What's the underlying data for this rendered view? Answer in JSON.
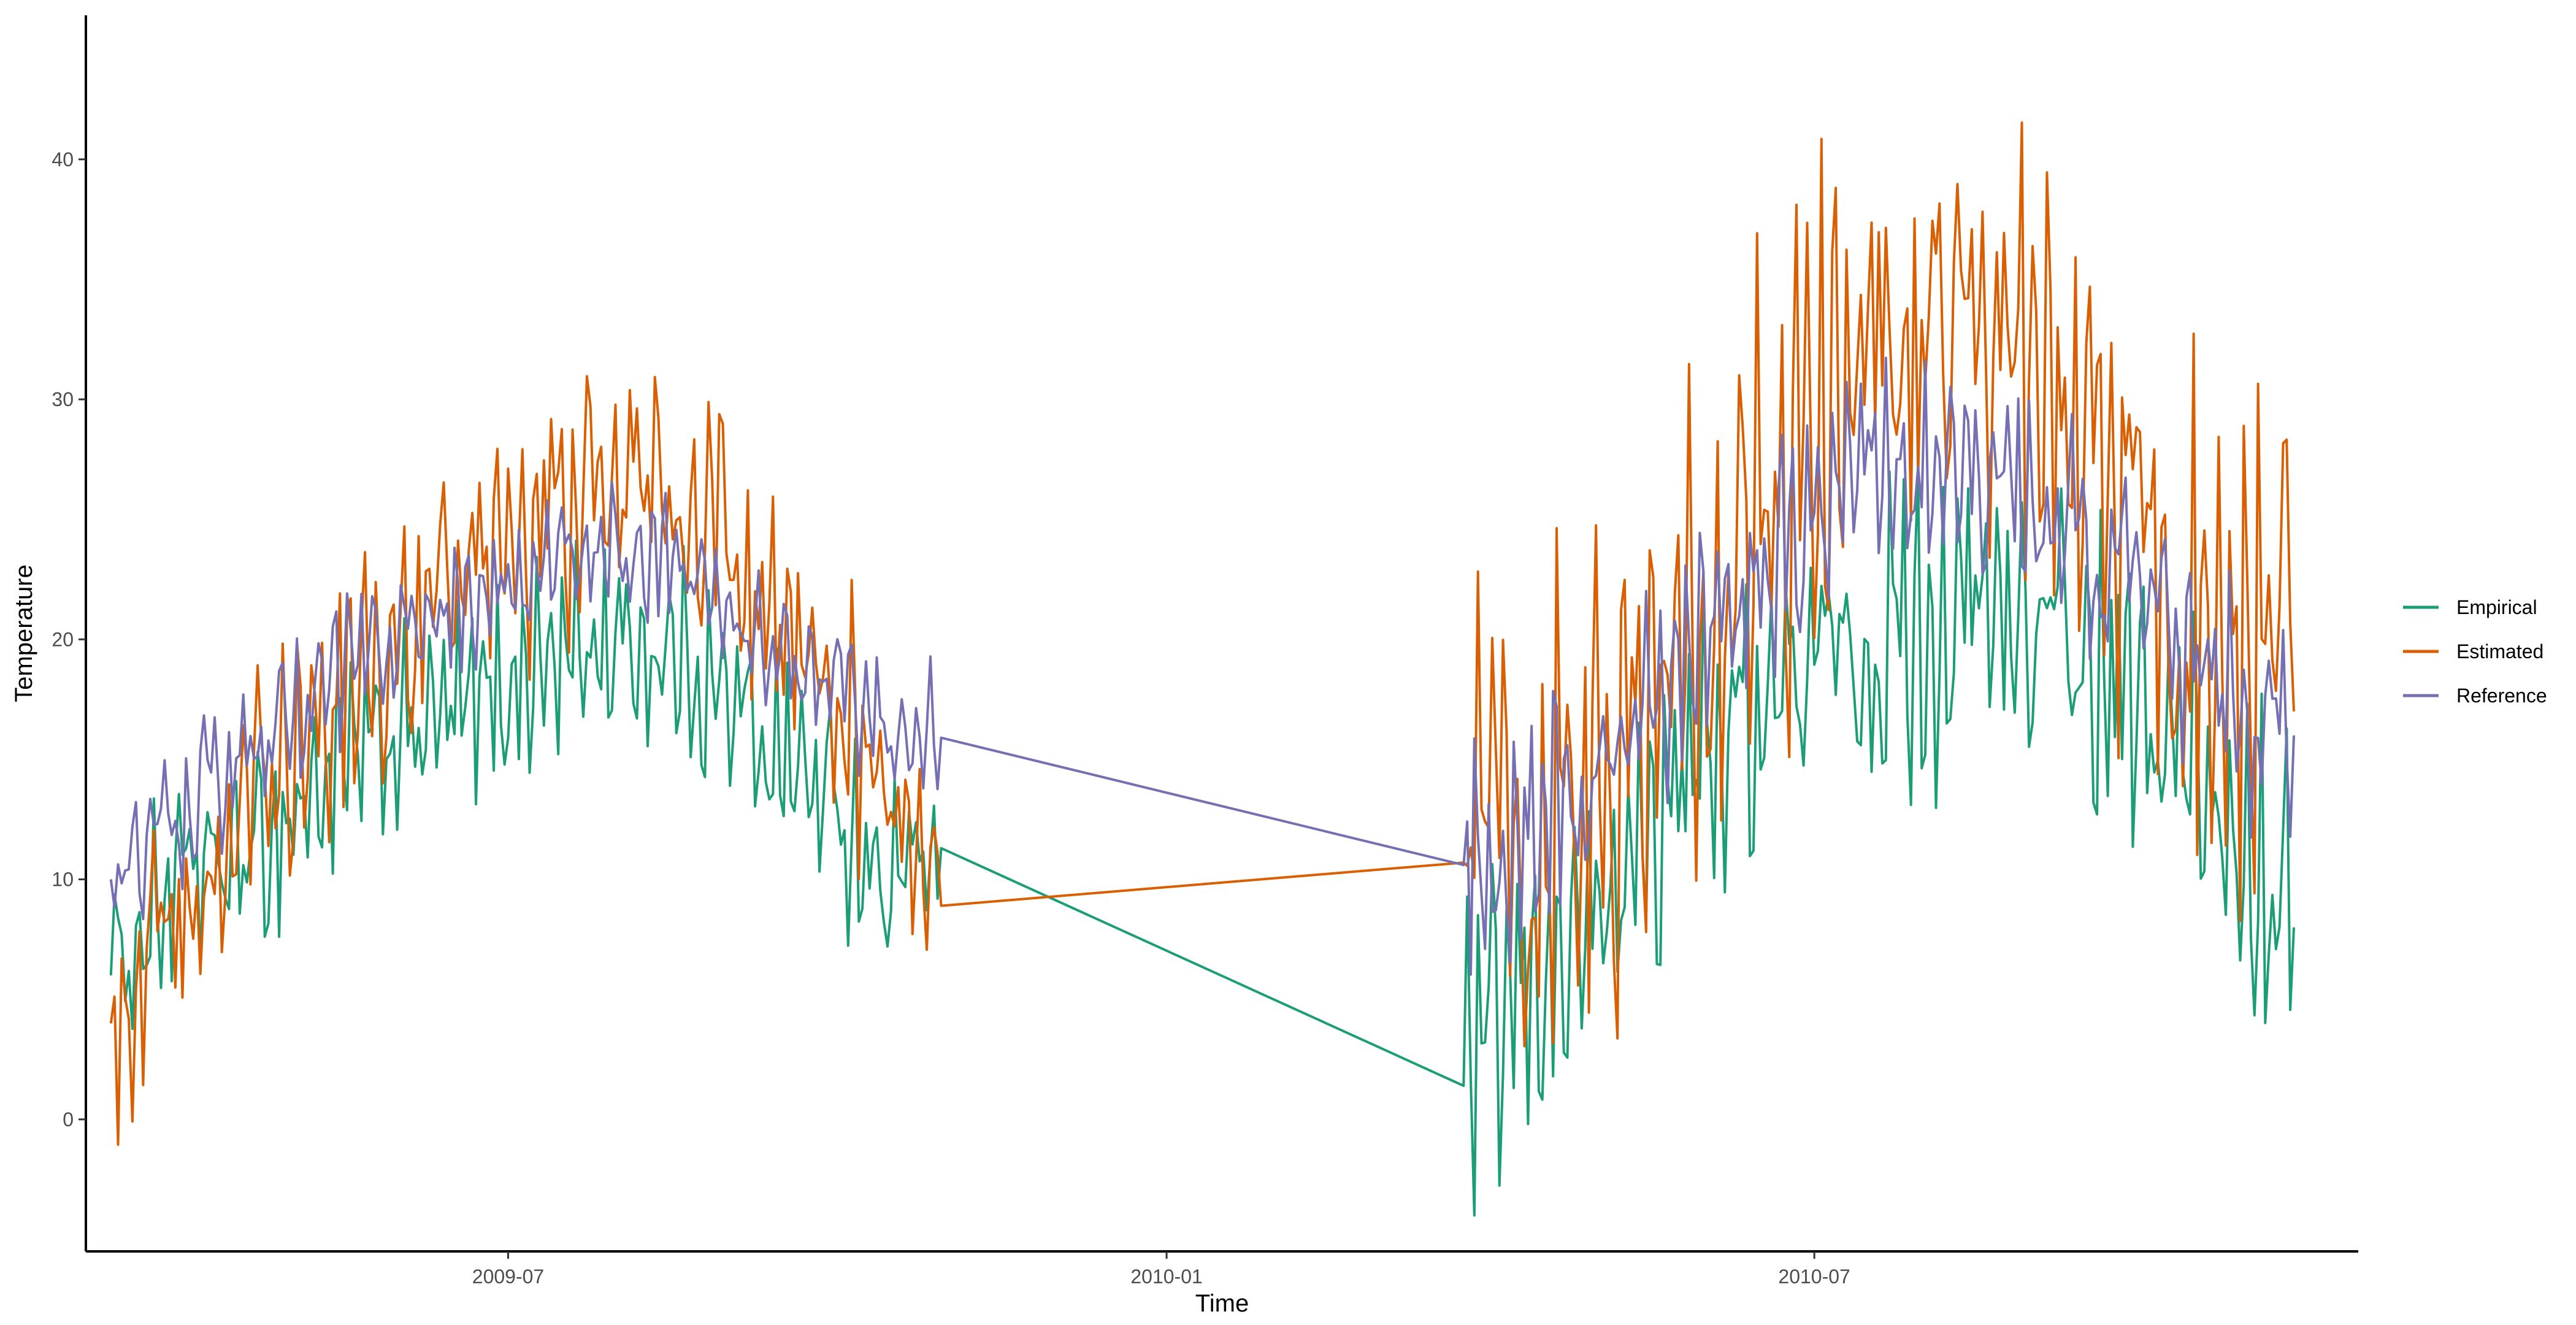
{
  "chart_data": {
    "type": "line",
    "title": "",
    "xlabel": "Time",
    "ylabel": "Temperature",
    "xlim": [
      "2009-03-05",
      "2010-11-30"
    ],
    "ylim": [
      -5.5,
      46
    ],
    "x_ticks": [
      {
        "date": "2009-07-01",
        "label": "2009-07"
      },
      {
        "date": "2010-01-01",
        "label": "2010-01"
      },
      {
        "date": "2010-07-01",
        "label": "2010-07"
      }
    ],
    "y_ticks": [
      0,
      10,
      20,
      30,
      40
    ],
    "grid": false,
    "legend": {
      "position": "right"
    },
    "segments": [
      {
        "start": "2009-03-12",
        "end": "2009-10-30"
      },
      {
        "start": "2010-03-25",
        "end": "2010-11-12"
      }
    ],
    "series": [
      {
        "name": "Empirical",
        "color": "#1B9E77",
        "points": [
          {
            "x": "2009-03-12",
            "y": 6
          },
          {
            "x": "2009-04-01",
            "y": 10
          },
          {
            "x": "2009-04-20",
            "y": 11
          },
          {
            "x": "2009-05-10",
            "y": 14
          },
          {
            "x": "2009-06-01",
            "y": 16
          },
          {
            "x": "2009-06-20",
            "y": 17
          },
          {
            "x": "2009-07-10",
            "y": 19
          },
          {
            "x": "2009-08-01",
            "y": 20
          },
          {
            "x": "2009-08-20",
            "y": 19
          },
          {
            "x": "2009-09-10",
            "y": 16
          },
          {
            "x": "2009-09-30",
            "y": 13
          },
          {
            "x": "2009-10-15",
            "y": 10
          },
          {
            "x": "2009-10-30",
            "y": 11.3
          },
          {
            "x": "2010-03-25",
            "y": 1.4
          },
          {
            "x": "2010-04-10",
            "y": 5
          },
          {
            "x": "2010-05-01",
            "y": 8
          },
          {
            "x": "2010-05-20",
            "y": 13
          },
          {
            "x": "2010-06-10",
            "y": 17
          },
          {
            "x": "2010-07-01",
            "y": 19
          },
          {
            "x": "2010-07-20",
            "y": 20
          },
          {
            "x": "2010-08-10",
            "y": 21
          },
          {
            "x": "2010-08-30",
            "y": 21
          },
          {
            "x": "2010-09-20",
            "y": 18
          },
          {
            "x": "2010-10-10",
            "y": 15
          },
          {
            "x": "2010-10-30",
            "y": 12
          },
          {
            "x": "2010-11-12",
            "y": 8
          }
        ]
      },
      {
        "name": "Estimated",
        "color": "#D95F02",
        "points": [
          {
            "x": "2009-03-12",
            "y": 4
          },
          {
            "x": "2009-04-01",
            "y": 9
          },
          {
            "x": "2009-04-20",
            "y": 12
          },
          {
            "x": "2009-05-10",
            "y": 17
          },
          {
            "x": "2009-06-01",
            "y": 20
          },
          {
            "x": "2009-06-20",
            "y": 22
          },
          {
            "x": "2009-07-10",
            "y": 25
          },
          {
            "x": "2009-08-01",
            "y": 27
          },
          {
            "x": "2009-08-20",
            "y": 26
          },
          {
            "x": "2009-09-10",
            "y": 22
          },
          {
            "x": "2009-09-30",
            "y": 18
          },
          {
            "x": "2009-10-15",
            "y": 14
          },
          {
            "x": "2009-10-30",
            "y": 8.9
          },
          {
            "x": "2010-03-25",
            "y": 10.7
          },
          {
            "x": "2010-04-10",
            "y": 11
          },
          {
            "x": "2010-05-01",
            "y": 14
          },
          {
            "x": "2010-05-20",
            "y": 18
          },
          {
            "x": "2010-06-10",
            "y": 24
          },
          {
            "x": "2010-07-01",
            "y": 29
          },
          {
            "x": "2010-07-20",
            "y": 32
          },
          {
            "x": "2010-08-10",
            "y": 33
          },
          {
            "x": "2010-08-30",
            "y": 32
          },
          {
            "x": "2010-09-20",
            "y": 26
          },
          {
            "x": "2010-10-10",
            "y": 22
          },
          {
            "x": "2010-10-30",
            "y": 19
          },
          {
            "x": "2010-11-12",
            "y": 17
          }
        ]
      },
      {
        "name": "Reference",
        "color": "#7570B3",
        "points": [
          {
            "x": "2009-03-12",
            "y": 10
          },
          {
            "x": "2009-04-01",
            "y": 13
          },
          {
            "x": "2009-04-20",
            "y": 15
          },
          {
            "x": "2009-05-10",
            "y": 18
          },
          {
            "x": "2009-06-01",
            "y": 20
          },
          {
            "x": "2009-06-20",
            "y": 21
          },
          {
            "x": "2009-07-10",
            "y": 23
          },
          {
            "x": "2009-08-01",
            "y": 24
          },
          {
            "x": "2009-08-20",
            "y": 23
          },
          {
            "x": "2009-09-10",
            "y": 20
          },
          {
            "x": "2009-09-30",
            "y": 18
          },
          {
            "x": "2009-10-15",
            "y": 16
          },
          {
            "x": "2009-10-30",
            "y": 15.9
          },
          {
            "x": "2010-03-25",
            "y": 10.6
          },
          {
            "x": "2010-04-10",
            "y": 12
          },
          {
            "x": "2010-05-01",
            "y": 15
          },
          {
            "x": "2010-05-20",
            "y": 18
          },
          {
            "x": "2010-06-10",
            "y": 22
          },
          {
            "x": "2010-07-01",
            "y": 25
          },
          {
            "x": "2010-07-20",
            "y": 27
          },
          {
            "x": "2010-08-10",
            "y": 27
          },
          {
            "x": "2010-08-30",
            "y": 26
          },
          {
            "x": "2010-09-20",
            "y": 23
          },
          {
            "x": "2010-10-10",
            "y": 20
          },
          {
            "x": "2010-10-30",
            "y": 17
          },
          {
            "x": "2010-11-12",
            "y": 16
          }
        ]
      }
    ]
  }
}
